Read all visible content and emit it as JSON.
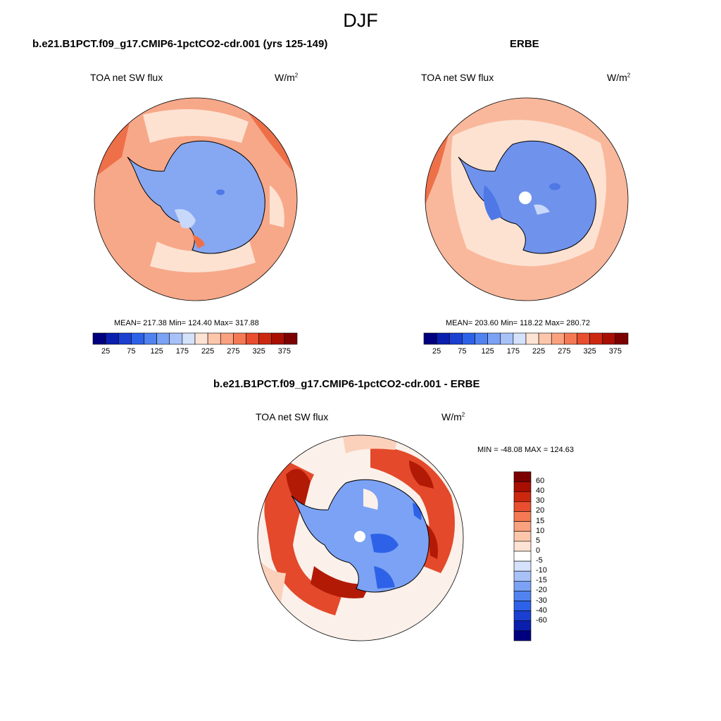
{
  "page": {
    "title": "DJF"
  },
  "panels": [
    {
      "title": "b.e21.B1PCT.f09_g17.CMIP6-1pctCO2-cdr.001 (yrs 125-149)",
      "left_label": "TOA net SW flux",
      "units_base": "W/m",
      "units_exp": "2",
      "stats": "MEAN= 217.38  Min= 124.40  Max= 317.88"
    },
    {
      "title": "ERBE",
      "left_label": "TOA net SW flux",
      "units_base": "W/m",
      "units_exp": "2",
      "stats": "MEAN= 203.60  Min= 118.22  Max= 280.72"
    },
    {
      "title": "b.e21.B1PCT.f09_g17.CMIP6-1pctCO2-cdr.001 - ERBE",
      "left_label": "TOA net SW flux",
      "units_base": "W/m",
      "units_exp": "2",
      "stats": "MIN = -48.08 MAX = 124.63"
    }
  ],
  "colorbar_abs": {
    "ticks": [
      "25",
      "75",
      "125",
      "175",
      "225",
      "275",
      "325",
      "375"
    ],
    "colors": [
      "#00007f",
      "#0a1fae",
      "#1b3fd0",
      "#2d62e8",
      "#5183f0",
      "#7ba2f4",
      "#a8c2f8",
      "#d5e2fb",
      "#fde3d4",
      "#fcc6ab",
      "#faa17f",
      "#f47a55",
      "#e84e2f",
      "#cc2810",
      "#a80f02",
      "#7d0000"
    ]
  },
  "colorbar_diff": {
    "ticks": [
      "60",
      "40",
      "30",
      "20",
      "15",
      "10",
      "5",
      "0",
      "-5",
      "-10",
      "-15",
      "-20",
      "-30",
      "-40",
      "-60"
    ],
    "colors": [
      "#7d0000",
      "#a80f02",
      "#cc2810",
      "#e84e2f",
      "#f47a55",
      "#faa17f",
      "#fcc6ab",
      "#fde3d4",
      "#ffffff",
      "#d5e2fb",
      "#a8c2f8",
      "#7ba2f4",
      "#5183f0",
      "#2d62e8",
      "#1b3fd0",
      "#0a1fae",
      "#00007f"
    ]
  },
  "map_colors": {
    "ocean_model": "#f7a889",
    "ocean_obs": "#f9b89c",
    "ocean_light": "#fde2d2",
    "ocean_dark": "#ee7049",
    "ice_model": "#86a8f2",
    "ice_obs": "#6f92ec",
    "ice_deep": "#4f78e6",
    "ice_light": "#c8d8fa",
    "diff_red": "#e3492a",
    "diff_darkred": "#b31a05",
    "diff_pale": "#fbd1bc",
    "diff_white": "#fbf0ea",
    "diff_blue": "#7ba2f4",
    "diff_darkblue": "#2d62e8",
    "coast": "#000000",
    "missing": "#ffffff"
  }
}
